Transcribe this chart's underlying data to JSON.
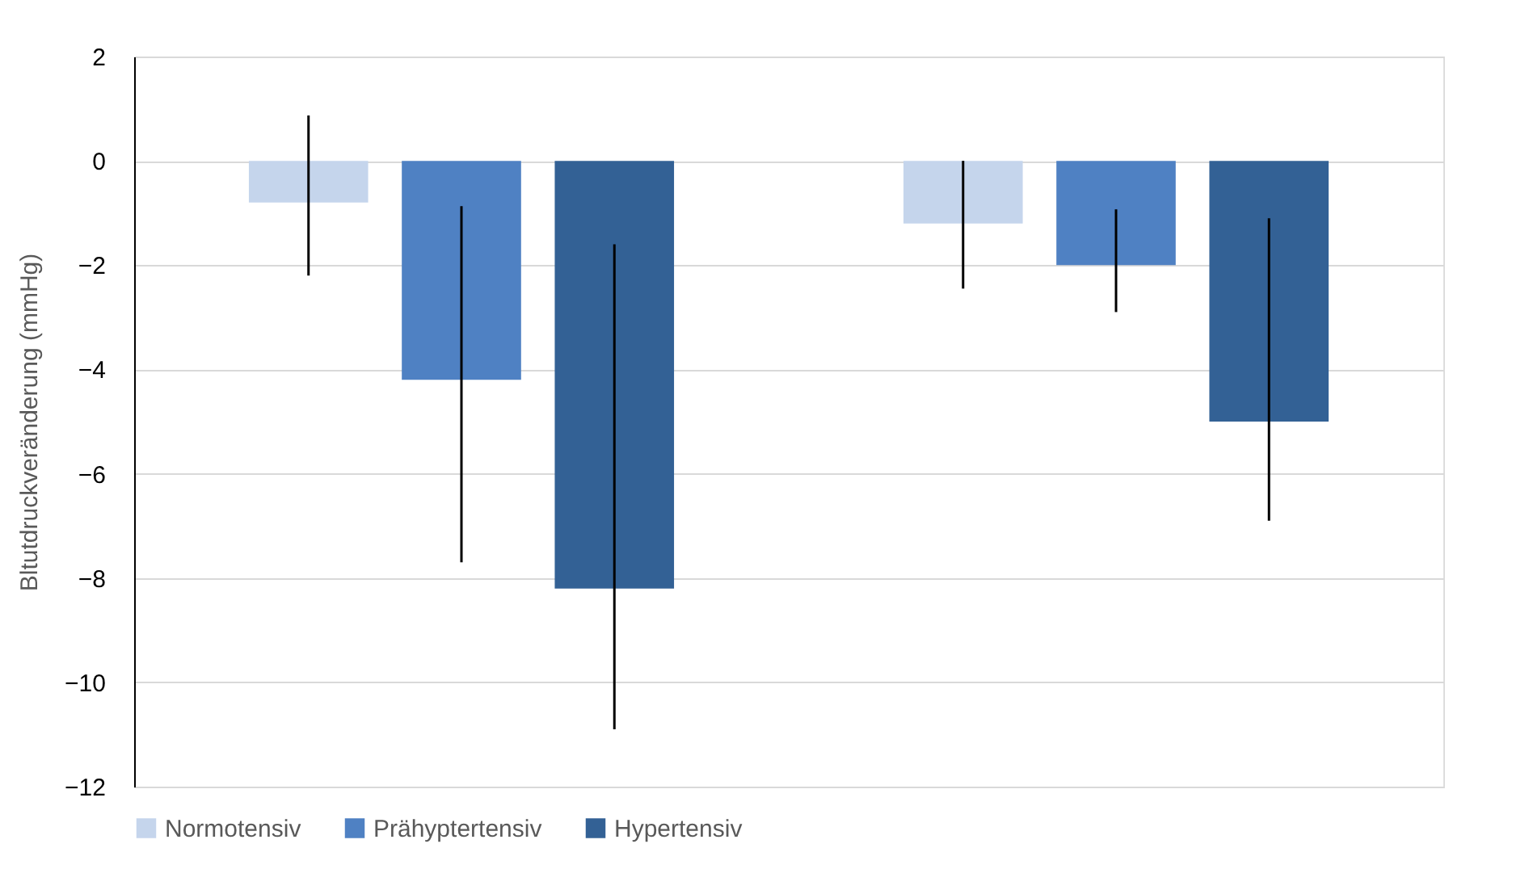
{
  "chart_data": {
    "type": "bar",
    "ylabel": "Bltutdruckveränderung (mmHg)",
    "categories": [
      null,
      null
    ],
    "series": [
      {
        "name": "Normotensiv",
        "color": "#c5d5ec",
        "values": [
          -0.8,
          -1.2
        ],
        "errors": [
          [
            -2.2,
            0.87
          ],
          [
            -2.45,
            0.0
          ]
        ]
      },
      {
        "name": "Prähyptertensiv",
        "color": "#4f81c3",
        "values": [
          -4.2,
          -2.0
        ],
        "errors": [
          [
            -7.7,
            -0.87
          ],
          [
            -2.9,
            -0.93
          ]
        ]
      },
      {
        "name": "Hypertensiv",
        "color": "#336195",
        "values": [
          -8.2,
          -5.0
        ],
        "errors": [
          [
            -10.9,
            -1.6
          ],
          [
            -6.9,
            -1.1
          ]
        ]
      }
    ],
    "ylim": [
      -12,
      2
    ],
    "yticks": [
      -12,
      -10,
      -8,
      -6,
      -4,
      -2,
      0,
      2
    ],
    "grid": "y",
    "legend": "bottom",
    "tick_labels": "y"
  }
}
